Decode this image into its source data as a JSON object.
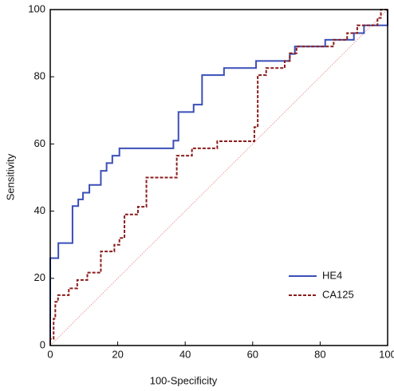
{
  "chart_data": {
    "type": "line",
    "x_label": "100-Specificity",
    "y_label": "Sensitivity",
    "xlim": [
      0,
      100
    ],
    "ylim": [
      0,
      100
    ],
    "xticks": [
      0,
      20,
      40,
      60,
      80,
      100
    ],
    "yticks": [
      0,
      20,
      40,
      60,
      80,
      100
    ],
    "legend": "lower right",
    "series": [
      {
        "name": "HE4",
        "color": "#3b4fb8",
        "dash": false,
        "x": [
          0,
          0,
          2.4,
          2.4,
          6.6,
          6.6,
          8.3,
          8.3,
          9.7,
          9.7,
          11.6,
          11.6,
          15,
          15,
          16.7,
          16.7,
          18.4,
          18.4,
          20.5,
          20.5,
          36.5,
          36.5,
          38,
          38,
          42.5,
          42.5,
          45,
          45,
          51.5,
          51.5,
          61,
          61,
          71,
          71,
          72.5,
          72.5,
          81.5,
          81.5,
          90,
          90,
          93,
          93,
          100,
          100
        ],
        "values": [
          0,
          26,
          26,
          30.5,
          30.5,
          41.5,
          41.5,
          43.5,
          43.5,
          45.5,
          45.5,
          47.8,
          47.8,
          52,
          52,
          54.3,
          54.3,
          56.5,
          56.5,
          58.7,
          58.7,
          61,
          61,
          69.5,
          69.5,
          71.7,
          71.7,
          80.5,
          80.5,
          82.6,
          82.6,
          84.7,
          84.7,
          86.8,
          86.8,
          89,
          89,
          91,
          91,
          93,
          93,
          95.3,
          95.3,
          100
        ]
      },
      {
        "name": "CA125",
        "color": "#8b1c1c",
        "dash": true,
        "x": [
          0,
          0,
          1,
          1,
          1.5,
          1.5,
          2.3,
          2.3,
          5.5,
          5.5,
          8,
          8,
          11,
          11,
          15,
          15,
          19,
          19,
          20.5,
          20.5,
          22,
          22,
          26,
          26,
          28.5,
          28.5,
          37.5,
          37.5,
          42,
          42,
          49.5,
          49.5,
          60.5,
          60.5,
          61.5,
          61.5,
          64,
          64,
          69.5,
          69.5,
          71,
          71,
          73,
          73,
          84,
          84,
          88,
          88,
          91,
          91,
          97,
          97,
          98,
          98,
          100
        ],
        "values": [
          0,
          2,
          2,
          8,
          8,
          13,
          13,
          15,
          15,
          17,
          17,
          19.5,
          19.5,
          21.7,
          21.7,
          28,
          28,
          30,
          30,
          32,
          32,
          39,
          39,
          41.3,
          41.3,
          50,
          50,
          56.5,
          56.5,
          58.7,
          58.7,
          60.8,
          60.8,
          65,
          65,
          80.5,
          80.5,
          82.6,
          82.6,
          84.7,
          84.7,
          87,
          87,
          89,
          89,
          91,
          91,
          93,
          93,
          95.3,
          95.3,
          97.5,
          97.5,
          100,
          100
        ]
      }
    ]
  }
}
